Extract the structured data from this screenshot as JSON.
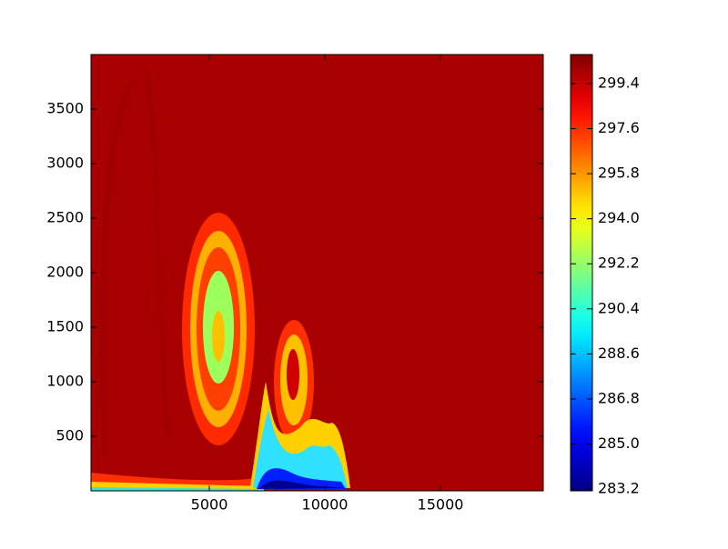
{
  "chart_data": {
    "type": "heatmap",
    "colormap": "jet",
    "xlim": [
      -120,
      19450
    ],
    "xticks": [
      5000,
      10000,
      15000
    ],
    "ylim": [
      0,
      4000
    ],
    "yticks": [
      500,
      1000,
      1500,
      2000,
      2500,
      3000,
      3500
    ],
    "clim": [
      283.13,
      300.56
    ],
    "cticks": [
      283.2,
      {
        "value": 285,
        "label": "285.0"
      },
      286.8,
      288.6,
      290.4,
      292.2,
      {
        "value": 294,
        "label": "294.0"
      },
      295.8,
      297.6,
      299.4
    ]
  }
}
